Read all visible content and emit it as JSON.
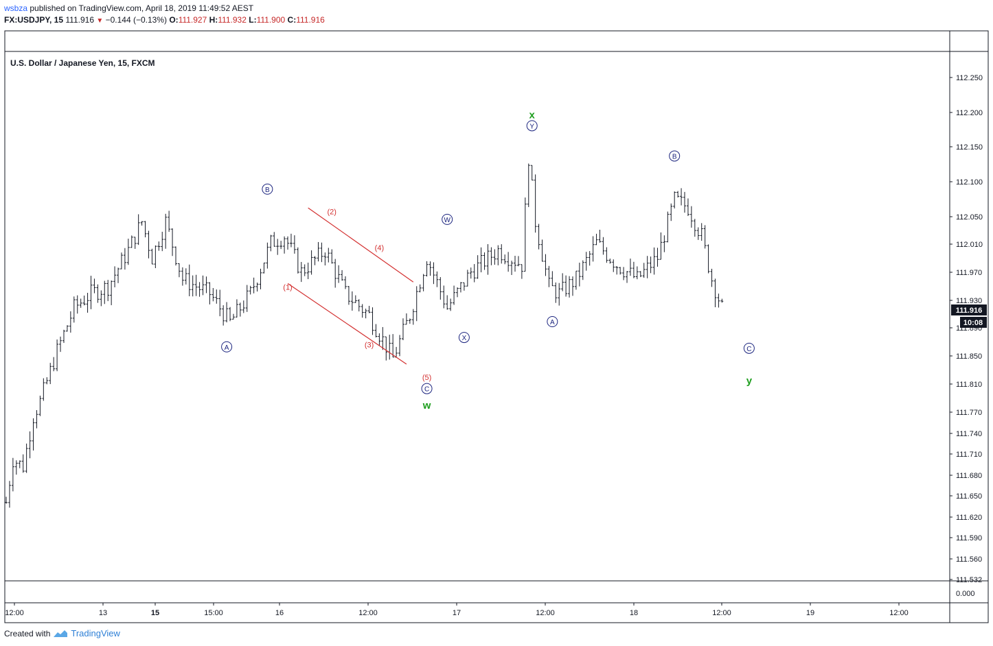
{
  "header": {
    "author": "wsbza",
    "published_text": "published on TradingView.com, April 18, 2019 11:49:52 AEST",
    "symbol": "FX:USDJPY, 15",
    "last": "111.916",
    "change": "−0.144 (−0.13%)",
    "o_label": "O:",
    "o_value": "111.927",
    "h_label": "H:",
    "h_value": "111.932",
    "l_label": "L:",
    "l_value": "111.900",
    "c_label": "C:",
    "c_value": "111.916"
  },
  "footer": {
    "created_with": "Created with",
    "brand": "TradingView"
  },
  "colors": {
    "bars": "#131722",
    "wave_blue": "#1a237e",
    "wave_red": "#d32f2f",
    "wave_green": "#1e9e1e",
    "price_tag": "#131722"
  },
  "chart_data": {
    "type": "bar",
    "title": "U.S. Dollar / Japanese Yen, 15, FXCM",
    "x_ticks": [
      "12:00",
      "13",
      "15",
      "15:00",
      "16",
      "12:00",
      "17",
      "12:00",
      "18",
      "12:00",
      "19",
      "12:00"
    ],
    "y_ticks": [
      "112.250",
      "112.200",
      "112.150",
      "112.100",
      "112.050",
      "112.010",
      "111.970",
      "111.930",
      "111.890",
      "111.850",
      "111.810",
      "111.770",
      "111.740",
      "111.710",
      "111.680",
      "111.650",
      "111.620",
      "111.590",
      "111.560",
      "111.532"
    ],
    "ylim": [
      111.53,
      112.27
    ],
    "price_tag": "111.916",
    "countdown": "10:08",
    "volume_axis_label": "0.000",
    "series_path": [
      {
        "x": 0,
        "y": 111.66
      },
      {
        "x": 2,
        "y": 111.72
      },
      {
        "x": 5,
        "y": 111.71
      },
      {
        "x": 8,
        "y": 111.78
      },
      {
        "x": 10,
        "y": 111.8
      },
      {
        "x": 15,
        "y": 111.87
      },
      {
        "x": 20,
        "y": 111.93
      },
      {
        "x": 25,
        "y": 111.95
      },
      {
        "x": 30,
        "y": 111.96
      },
      {
        "x": 36,
        "y": 112.01
      },
      {
        "x": 40,
        "y": 112.05
      },
      {
        "x": 43,
        "y": 112.0
      },
      {
        "x": 47,
        "y": 112.05
      },
      {
        "x": 52,
        "y": 111.97
      },
      {
        "x": 60,
        "y": 111.95
      },
      {
        "x": 66,
        "y": 111.91
      },
      {
        "x": 72,
        "y": 111.95
      },
      {
        "x": 78,
        "y": 112.02
      },
      {
        "x": 82,
        "y": 112.03
      },
      {
        "x": 87,
        "y": 111.98
      },
      {
        "x": 94,
        "y": 112.01
      },
      {
        "x": 100,
        "y": 111.95
      },
      {
        "x": 107,
        "y": 111.92
      },
      {
        "x": 114,
        "y": 111.86
      },
      {
        "x": 119,
        "y": 111.92
      },
      {
        "x": 124,
        "y": 112.0
      },
      {
        "x": 130,
        "y": 111.93
      },
      {
        "x": 137,
        "y": 111.98
      },
      {
        "x": 145,
        "y": 112.01
      },
      {
        "x": 152,
        "y": 111.99
      },
      {
        "x": 154,
        "y": 112.14
      },
      {
        "x": 156,
        "y": 112.05
      },
      {
        "x": 160,
        "y": 111.96
      },
      {
        "x": 163,
        "y": 111.95
      },
      {
        "x": 168,
        "y": 111.97
      },
      {
        "x": 174,
        "y": 112.02
      },
      {
        "x": 180,
        "y": 111.99
      },
      {
        "x": 186,
        "y": 111.97
      },
      {
        "x": 192,
        "y": 112.0
      },
      {
        "x": 197,
        "y": 112.08
      },
      {
        "x": 201,
        "y": 112.07
      },
      {
        "x": 205,
        "y": 112.03
      },
      {
        "x": 208,
        "y": 111.97
      },
      {
        "x": 211,
        "y": 111.93
      }
    ],
    "wave_labels": [
      {
        "text": "A",
        "style": "circle-blue",
        "x": 65,
        "y": 111.876
      },
      {
        "text": "B",
        "style": "circle-blue",
        "x": 77,
        "y": 112.095
      },
      {
        "text": "(1)",
        "style": "red",
        "x": 83,
        "y": 111.959
      },
      {
        "text": "(2)",
        "style": "red",
        "x": 96,
        "y": 112.064
      },
      {
        "text": "(3)",
        "style": "red",
        "x": 107,
        "y": 111.879
      },
      {
        "text": "(4)",
        "style": "red",
        "x": 110,
        "y": 112.014
      },
      {
        "text": "(5)",
        "style": "red",
        "x": 124,
        "y": 111.834
      },
      {
        "text": "C",
        "style": "circle-blue",
        "x": 124,
        "y": 111.818
      },
      {
        "text": "w",
        "style": "green",
        "x": 124,
        "y": 111.795
      },
      {
        "text": "W",
        "style": "circle-blue",
        "x": 130,
        "y": 112.053
      },
      {
        "text": "X",
        "style": "circle-blue",
        "x": 135,
        "y": 111.889
      },
      {
        "text": "Y",
        "style": "circle-blue",
        "x": 155,
        "y": 112.183
      },
      {
        "text": "x",
        "style": "green",
        "x": 155,
        "y": 112.198
      },
      {
        "text": "A",
        "style": "circle-blue",
        "x": 161,
        "y": 111.911
      },
      {
        "text": "B",
        "style": "circle-blue",
        "x": 197,
        "y": 112.141
      },
      {
        "text": "C",
        "style": "circle-blue",
        "x": 219,
        "y": 111.874
      },
      {
        "text": "y",
        "style": "green",
        "x": 219,
        "y": 111.829
      }
    ],
    "channel_lines": [
      {
        "from": {
          "x": 83,
          "y": 111.964
        },
        "to": {
          "x": 118,
          "y": 111.852
        }
      },
      {
        "from": {
          "x": 89,
          "y": 112.069
        },
        "to": {
          "x": 120,
          "y": 111.966
        }
      }
    ]
  }
}
